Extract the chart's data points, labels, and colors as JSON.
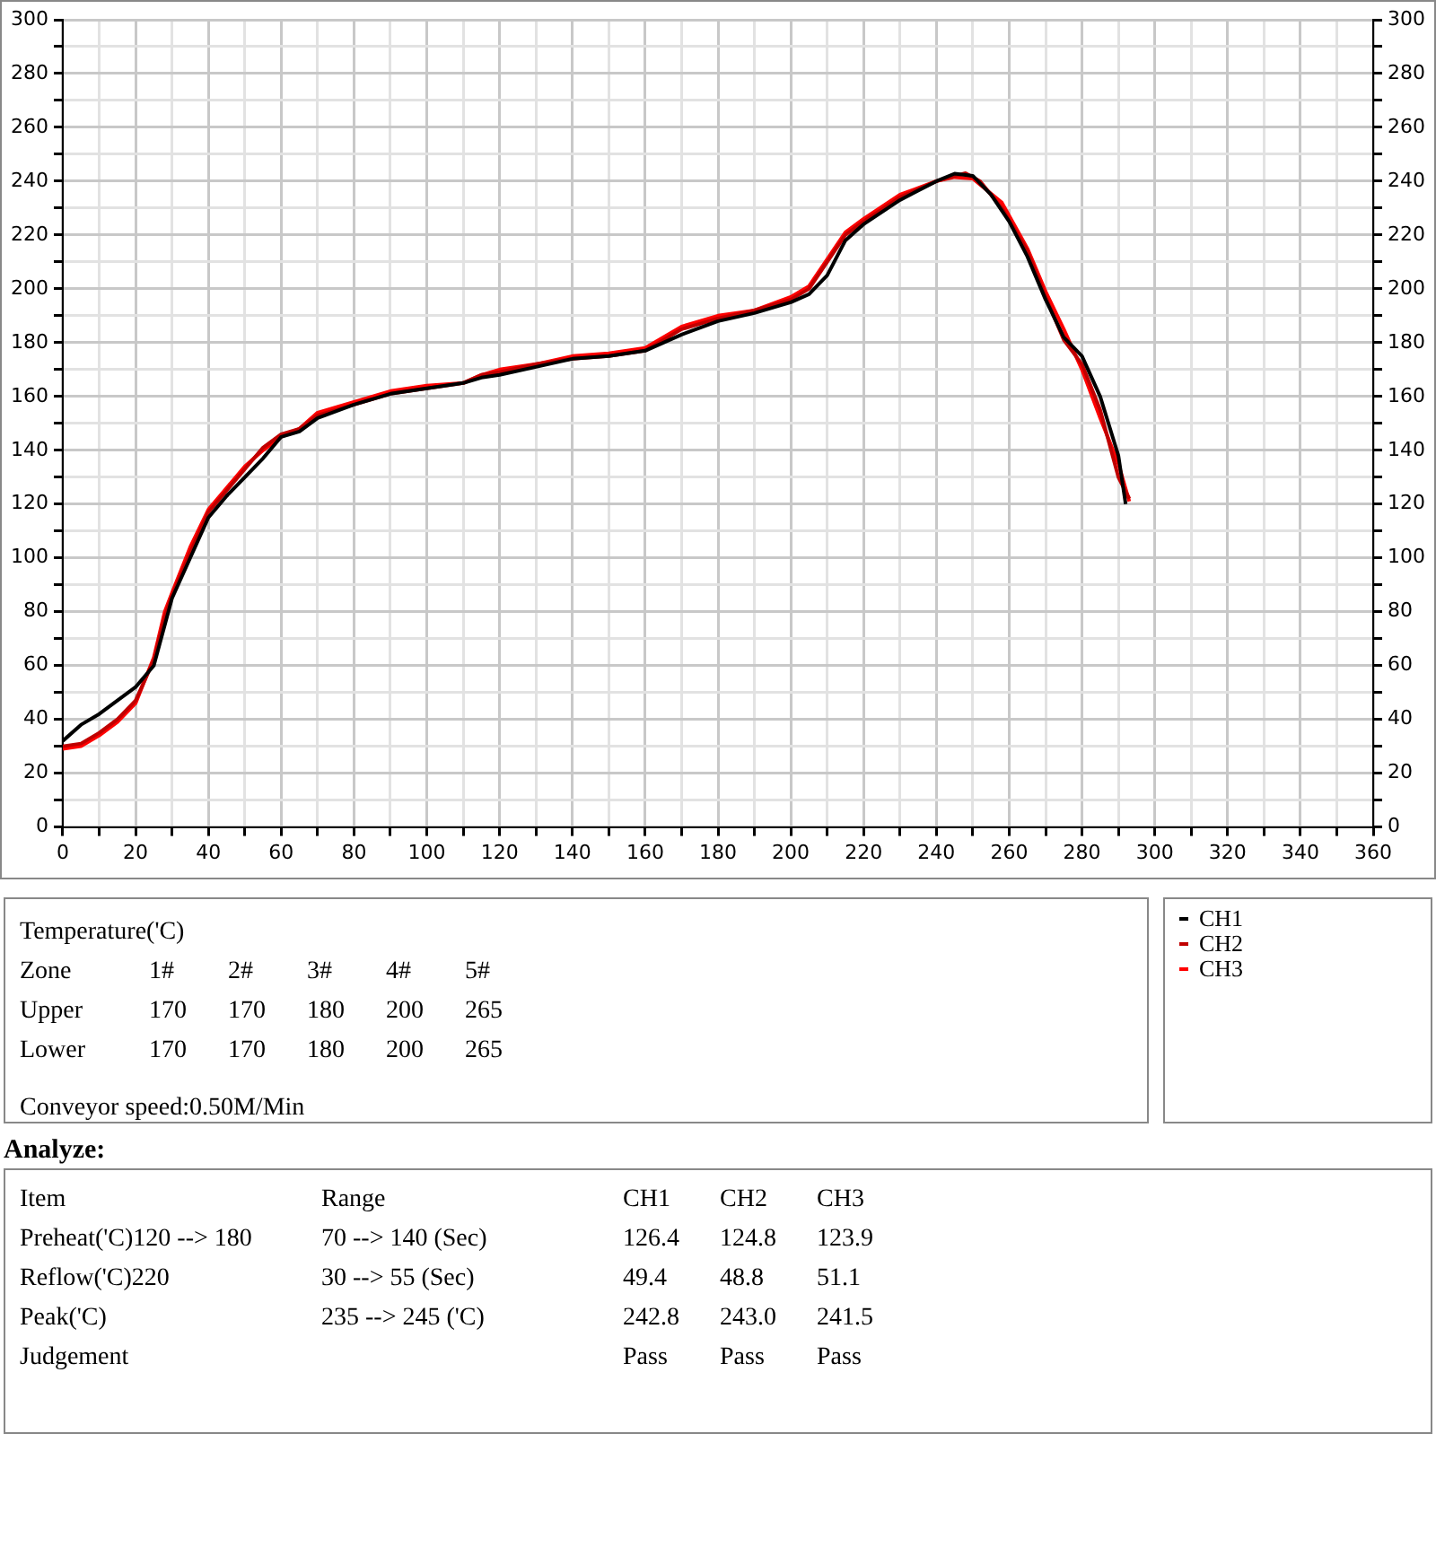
{
  "chart_data": {
    "type": "line",
    "x": [
      0,
      5,
      10,
      15,
      20,
      25,
      28,
      30,
      35,
      40,
      45,
      50,
      55,
      60,
      65,
      70,
      80,
      90,
      100,
      110,
      115,
      120,
      130,
      140,
      150,
      160,
      170,
      180,
      190,
      200,
      205,
      210,
      215,
      220,
      230,
      240,
      245,
      250,
      255,
      260,
      265,
      270,
      275,
      280,
      285,
      290,
      292
    ],
    "series": [
      {
        "name": "CH1",
        "color": "#000000",
        "values": [
          32,
          38,
          42,
          47,
          52,
          60,
          75,
          85,
          100,
          115,
          123,
          130,
          137,
          145,
          147,
          152,
          157,
          161,
          163,
          165,
          167,
          168,
          171,
          174,
          175,
          177,
          183,
          188,
          191,
          195,
          198,
          205,
          218,
          224,
          233,
          240,
          242.8,
          242,
          235,
          225,
          212,
          196,
          182,
          175,
          160,
          138,
          120
        ]
      },
      {
        "name": "CH2",
        "color": "#c00000",
        "x": [
          0,
          5,
          10,
          15,
          20,
          25,
          28,
          30,
          35,
          40,
          45,
          50,
          55,
          60,
          65,
          70,
          80,
          90,
          100,
          110,
          115,
          120,
          130,
          140,
          150,
          160,
          170,
          180,
          190,
          200,
          205,
          210,
          215,
          220,
          230,
          240,
          248,
          252,
          258,
          265,
          270,
          275,
          280,
          285,
          290,
          293
        ],
        "values": [
          30,
          31,
          35,
          40,
          47,
          62,
          78,
          86,
          102,
          117,
          125,
          133,
          141,
          146,
          148,
          153,
          157,
          161,
          163,
          165,
          168,
          169,
          172,
          174,
          175,
          177,
          185,
          189,
          192,
          196,
          200,
          210,
          220,
          225,
          234,
          240,
          243,
          240,
          230,
          214,
          197,
          181,
          172,
          155,
          130,
          122
        ]
      },
      {
        "name": "CH3",
        "color": "#ff0000",
        "x": [
          0,
          5,
          10,
          15,
          20,
          25,
          28,
          30,
          35,
          40,
          45,
          50,
          55,
          60,
          65,
          70,
          80,
          90,
          100,
          110,
          115,
          120,
          130,
          140,
          150,
          160,
          170,
          180,
          190,
          200,
          205,
          210,
          215,
          220,
          230,
          240,
          245,
          250,
          258,
          265,
          270,
          275,
          280,
          285,
          290,
          293
        ],
        "values": [
          29,
          30,
          34,
          39,
          46,
          63,
          80,
          87,
          104,
          118,
          126,
          134,
          140,
          145,
          148,
          154,
          158,
          162,
          164,
          165,
          168,
          170,
          172,
          175,
          176,
          178,
          186,
          190,
          192,
          197,
          201,
          211,
          221,
          226,
          235,
          240,
          241.5,
          241,
          232,
          215,
          199,
          185,
          170,
          152,
          135,
          121
        ]
      }
    ],
    "xlim": [
      0,
      360
    ],
    "xticks": [
      0,
      {
        "value": 10,
        "label": null
      },
      20,
      {
        "value": 30,
        "label": null
      },
      40,
      {
        "value": 50,
        "label": null
      },
      60,
      {
        "value": 70,
        "label": null
      },
      80,
      {
        "value": 90,
        "label": null
      },
      100,
      {
        "value": 110,
        "label": null
      },
      120,
      {
        "value": 130,
        "label": null
      },
      140,
      {
        "value": 150,
        "label": null
      },
      160,
      {
        "value": 170,
        "label": null
      },
      180,
      {
        "value": 190,
        "label": null
      },
      200,
      {
        "value": 210,
        "label": null
      },
      220,
      {
        "value": 230,
        "label": null
      },
      240,
      {
        "value": 250,
        "label": null
      },
      260,
      {
        "value": 270,
        "label": null
      },
      280,
      {
        "value": 290,
        "label": null
      },
      300,
      {
        "value": 310,
        "label": null
      },
      320,
      {
        "value": 330,
        "label": null
      },
      340,
      {
        "value": 350,
        "label": null
      },
      360
    ],
    "ylim": [
      0,
      300
    ],
    "yticks": [
      0,
      {
        "value": 10,
        "label": null
      },
      20,
      {
        "value": 30,
        "label": null
      },
      40,
      {
        "value": 50,
        "label": null
      },
      60,
      {
        "value": 70,
        "label": null
      },
      80,
      {
        "value": 90,
        "label": null
      },
      100,
      {
        "value": 110,
        "label": null
      },
      120,
      {
        "value": 130,
        "label": null
      },
      140,
      {
        "value": 150,
        "label": null
      },
      160,
      {
        "value": 170,
        "label": null
      },
      180,
      {
        "value": 190,
        "label": null
      },
      200,
      {
        "value": 210,
        "label": null
      },
      220,
      {
        "value": 230,
        "label": null
      },
      240,
      {
        "value": 250,
        "label": null
      },
      260,
      {
        "value": 270,
        "label": null
      },
      280,
      {
        "value": 290,
        "label": null
      },
      300
    ],
    "y2lim": [
      0,
      300
    ],
    "y2ticks": [
      0,
      {
        "value": 10,
        "label": null
      },
      20,
      {
        "value": 30,
        "label": null
      },
      40,
      {
        "value": 50,
        "label": null
      },
      60,
      {
        "value": 70,
        "label": null
      },
      80,
      {
        "value": 90,
        "label": null
      },
      100,
      {
        "value": 110,
        "label": null
      },
      120,
      {
        "value": 130,
        "label": null
      },
      140,
      {
        "value": 150,
        "label": null
      },
      160,
      {
        "value": 170,
        "label": null
      },
      180,
      {
        "value": 190,
        "label": null
      },
      200,
      {
        "value": 210,
        "label": null
      },
      220,
      {
        "value": 230,
        "label": null
      },
      240,
      {
        "value": 250,
        "label": null
      },
      260,
      {
        "value": 270,
        "label": null
      },
      280,
      {
        "value": 290,
        "label": null
      },
      300
    ],
    "grid": true,
    "legend": "bottom right",
    "marker": "none",
    "line_style": "solid",
    "annotations": [
      "Temperature('C)",
      "Zone\t1#\t2#\t3#\t4#\t5#",
      "Upper\t170\t170\t180\t200\t265",
      "Lower\t170\t170\t180\t200\t265",
      "Conveyor speed:0.50M/Min",
      "Analyze:",
      "Item\tRange\tCH1\tCH2\tCH3",
      "Preheat('C)120 --> 180\t70 --> 140 (Sec)\t126.4\t124.8\t123.9",
      "Reflow('C)220\t30 --> 55 (Sec)\t49.4\t48.8\t51.1",
      "Peak('C)\t235 --> 245 ('C)\t242.8\t243.0\t241.5",
      "Judgement\t\tPass\tPass\tPass"
    ]
  }
}
